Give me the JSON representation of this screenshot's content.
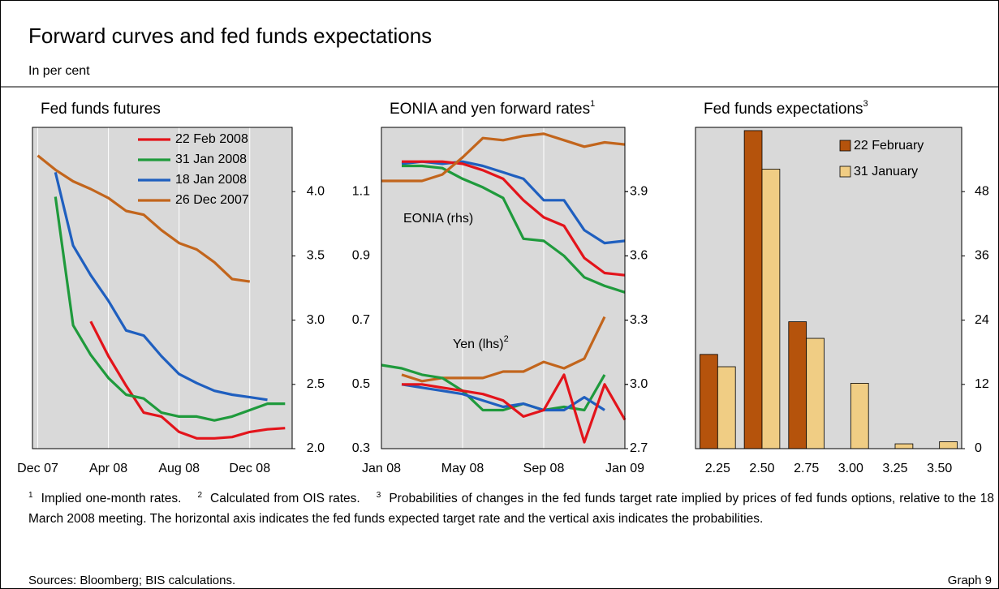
{
  "title": "Forward curves and fed funds expectations",
  "subtitle": "In per cent",
  "chart_data": [
    {
      "type": "line",
      "title": "Fed funds futures",
      "x": [
        0,
        1,
        2,
        3,
        4,
        5,
        6,
        7,
        8,
        9,
        10,
        11,
        12,
        13,
        14
      ],
      "xlim": [
        -0.3,
        14.4
      ],
      "xticks": [
        {
          "value": 0,
          "label": "Dec 07"
        },
        {
          "value": 4,
          "label": "Apr 08"
        },
        {
          "value": 8,
          "label": "Aug 08"
        },
        {
          "value": 12,
          "label": "Dec 08"
        }
      ],
      "ylim": [
        2.0,
        4.5
      ],
      "yticks": [
        {
          "value": 2,
          "label": "2.0"
        },
        2.5,
        {
          "value": 3,
          "label": "3.0"
        },
        3.5,
        {
          "value": 4,
          "label": "4.0"
        }
      ],
      "grid": "x",
      "series": [
        {
          "name": "22 Feb 2008",
          "color": "#e3141b",
          "values": [
            null,
            null,
            null,
            2.99,
            2.72,
            2.49,
            2.28,
            2.25,
            2.13,
            2.08,
            2.08,
            2.09,
            2.13,
            2.15,
            2.16
          ]
        },
        {
          "name": "31 Jan 2008",
          "color": "#1f9a3c",
          "values": [
            null,
            3.96,
            2.96,
            2.73,
            2.55,
            2.42,
            2.39,
            2.28,
            2.25,
            2.25,
            2.22,
            2.25,
            2.3,
            2.35,
            2.35
          ]
        },
        {
          "name": "18 Jan 2008",
          "color": "#1f5fbf",
          "values": [
            null,
            4.15,
            3.58,
            3.35,
            3.15,
            2.92,
            2.88,
            2.72,
            2.58,
            2.51,
            2.45,
            2.42,
            2.4,
            2.38,
            null
          ]
        },
        {
          "name": "26 Dec 2007",
          "color": "#c2651c",
          "values": [
            4.28,
            4.17,
            4.08,
            4.02,
            3.95,
            3.85,
            3.82,
            3.7,
            3.6,
            3.55,
            3.45,
            3.32,
            3.3,
            null,
            null
          ]
        }
      ]
    },
    {
      "type": "line",
      "title": "EONIA and yen forward rates",
      "title_note": "1",
      "x": [
        0,
        1,
        2,
        3,
        4,
        5,
        6,
        7,
        8,
        9,
        10,
        11,
        12
      ],
      "xlim": [
        0,
        12
      ],
      "xticks": [
        {
          "value": 0,
          "label": "Jan 08"
        },
        {
          "value": 4,
          "label": "May 08"
        },
        {
          "value": 8,
          "label": "Sep 08"
        },
        {
          "value": 12,
          "label": "Jan 09"
        }
      ],
      "ylim": [
        0.3,
        1.3
      ],
      "yticks": [
        0.3,
        0.5,
        0.7,
        0.9,
        1.1
      ],
      "y2lim": [
        2.7,
        4.2
      ],
      "y2ticks": [
        2.7,
        {
          "value": 3,
          "label": "3.0"
        },
        3.3,
        3.6,
        3.9
      ],
      "grid": "x",
      "annotations": [
        {
          "text": "EONIA (rhs)"
        },
        {
          "text": "Yen (lhs)",
          "note": "2"
        }
      ],
      "series": [
        {
          "color": "#1f5fbf",
          "axis": "y2",
          "values": [
            null,
            4.03,
            4.04,
            4.03,
            4.04,
            4.02,
            3.99,
            3.96,
            3.86,
            3.86,
            3.72,
            3.66,
            3.67
          ]
        },
        {
          "color": "#1f9a3c",
          "axis": "y2",
          "values": [
            null,
            4.02,
            4.02,
            4.01,
            3.96,
            3.92,
            3.87,
            3.68,
            3.67,
            3.6,
            3.5,
            3.46,
            3.43
          ]
        },
        {
          "color": "#e3141b",
          "axis": "y2",
          "values": [
            null,
            4.04,
            4.04,
            4.04,
            4.03,
            4.0,
            3.96,
            3.86,
            3.78,
            3.74,
            3.59,
            3.52,
            3.51
          ]
        },
        {
          "color": "#c2651c",
          "axis": "y2",
          "values": [
            3.95,
            3.95,
            3.95,
            3.98,
            4.06,
            4.15,
            4.14,
            4.16,
            4.17,
            4.14,
            4.11,
            4.13,
            4.12
          ]
        },
        {
          "color": "#c2651c",
          "values": [
            null,
            0.53,
            0.51,
            0.52,
            0.52,
            0.52,
            0.54,
            0.54,
            0.57,
            0.55,
            0.58,
            0.71,
            null
          ]
        },
        {
          "color": "#1f9a3c",
          "values": [
            0.56,
            0.55,
            0.53,
            0.52,
            0.48,
            0.42,
            0.42,
            0.44,
            0.42,
            0.43,
            0.42,
            0.53,
            null
          ]
        },
        {
          "color": "#1f5fbf",
          "values": [
            null,
            0.5,
            0.49,
            0.48,
            0.47,
            0.45,
            0.43,
            0.44,
            0.42,
            0.42,
            0.46,
            0.42,
            null
          ]
        },
        {
          "color": "#e3141b",
          "values": [
            null,
            0.5,
            0.5,
            0.49,
            0.48,
            0.47,
            0.45,
            0.4,
            0.42,
            0.53,
            0.32,
            0.5,
            0.39
          ]
        }
      ]
    },
    {
      "type": "bar",
      "title": "Fed funds expectations",
      "title_note": "3",
      "categories": [
        "2.25",
        "2.50",
        "2.75",
        "3.00",
        "3.25",
        "3.50"
      ],
      "ylim": [
        0,
        60
      ],
      "yticks": [
        0,
        12,
        24,
        36,
        48
      ],
      "series": [
        {
          "name": "22 February",
          "color": "#b5530c",
          "values": [
            17.6,
            59.4,
            23.7,
            0,
            0,
            0
          ]
        },
        {
          "name": "31 January",
          "color": "#f0cd84",
          "values": [
            15.3,
            52.2,
            20.6,
            12.2,
            0.9,
            1.3
          ]
        }
      ]
    }
  ],
  "footnotes": [
    {
      "mark": "1",
      "text": "Implied one-month rates."
    },
    {
      "mark": "2",
      "text": "Calculated from OIS rates."
    },
    {
      "mark": "3",
      "text": "Probabilities of changes in the fed funds target rate implied by prices of fed funds options, relative to the 18 March 2008 meeting. The horizontal axis indicates the fed funds expected target rate and the vertical axis indicates the probabilities."
    }
  ],
  "sources": "Sources: Bloomberg; BIS calculations.",
  "graph_label": "Graph 9"
}
